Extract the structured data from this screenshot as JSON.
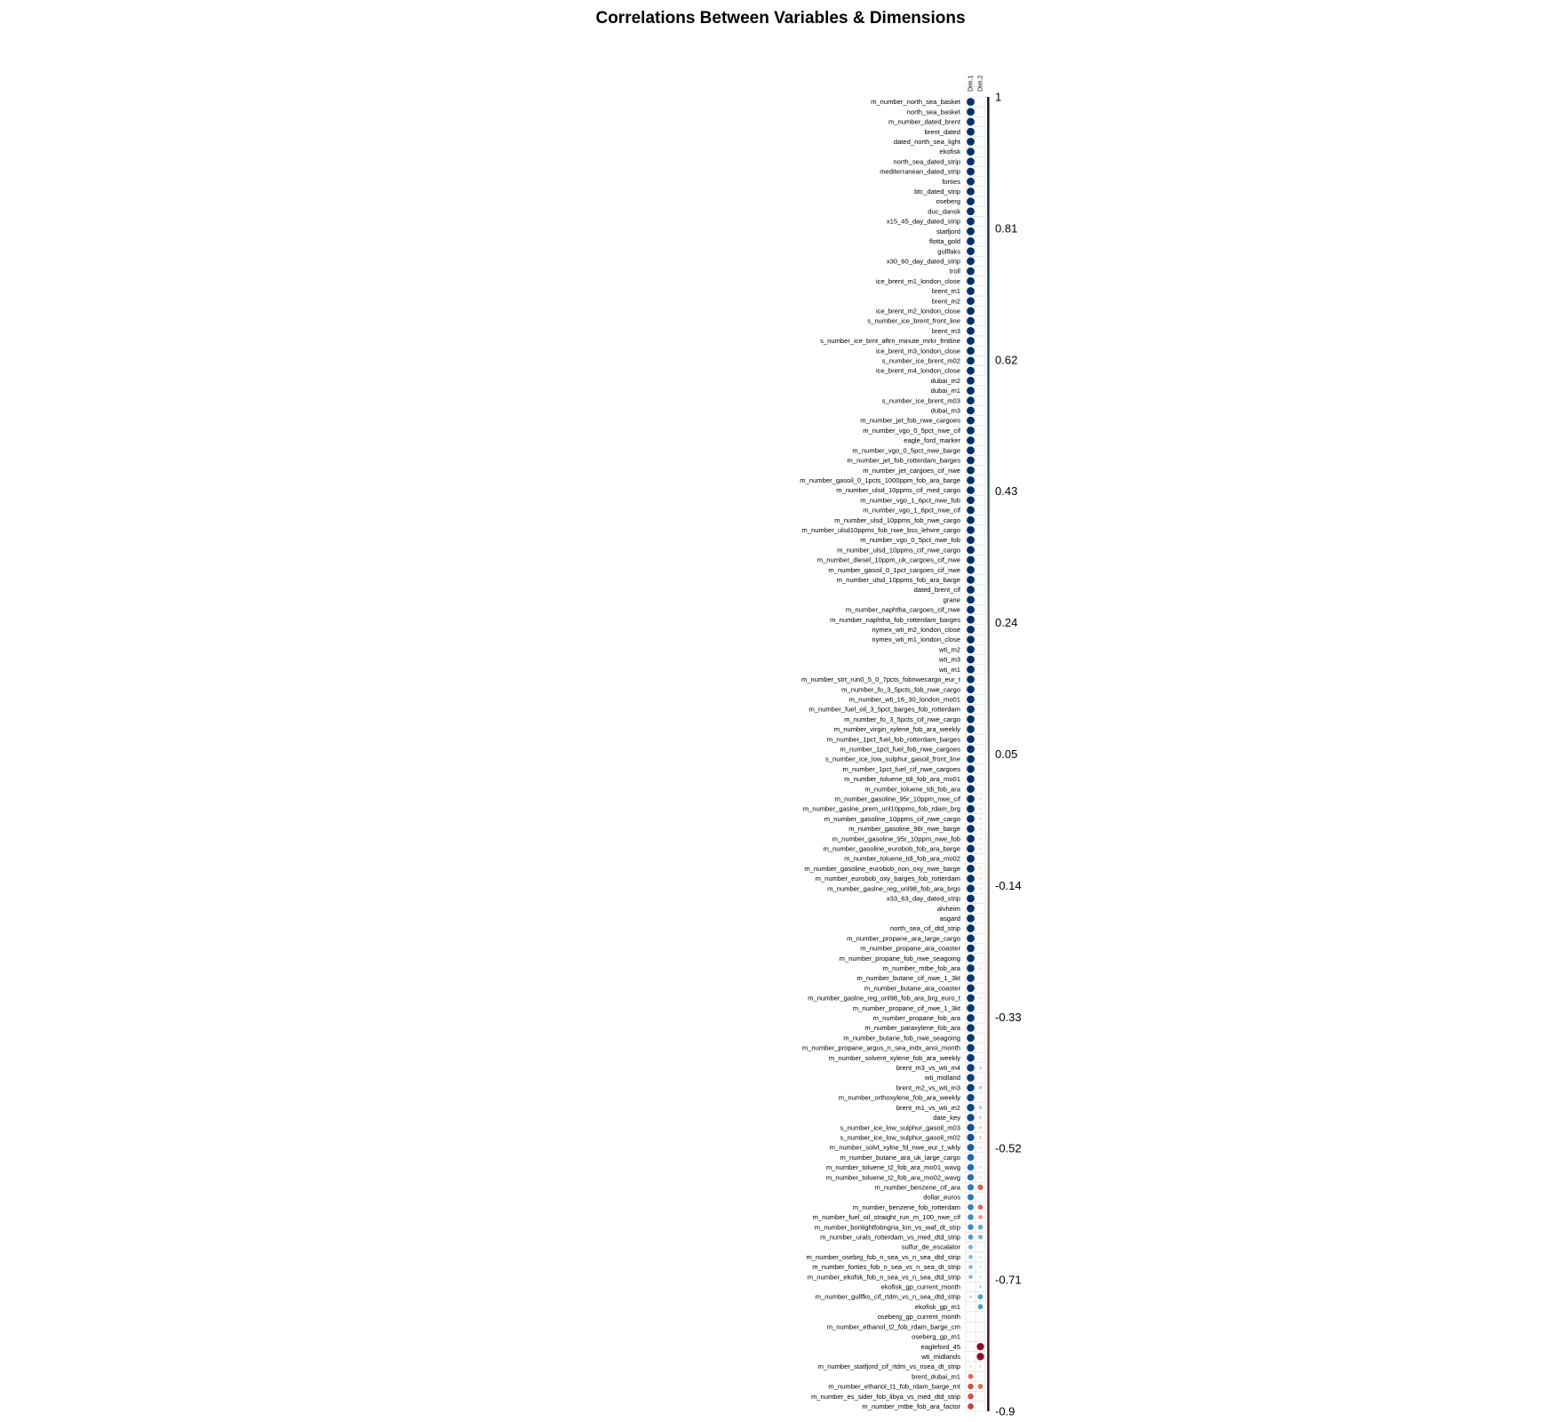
{
  "chart_data": {
    "type": "heatmap",
    "title": "Correlations Between Variables & Dimensions",
    "columns": [
      "Dim.1",
      "Dim.2"
    ],
    "colorbar": {
      "ticks": [
        "1",
        "0.81",
        "0.62",
        "0.43",
        "0.24",
        "0.05",
        "-0.14",
        "-0.33",
        "-0.52",
        "-0.71",
        "-0.9"
      ],
      "range": [
        -0.9,
        1
      ],
      "negative_color": "#67001f",
      "positive_color": "#053061"
    },
    "rows": [
      {
        "name": "m_number_north_sea_basket",
        "dim1": 0.99,
        "dim2": 0.0
      },
      {
        "name": "north_sea_basket",
        "dim1": 0.99,
        "dim2": 0.0
      },
      {
        "name": "m_number_dated_brent",
        "dim1": 0.99,
        "dim2": 0.0
      },
      {
        "name": "brent_dated",
        "dim1": 0.99,
        "dim2": 0.0
      },
      {
        "name": "dated_north_sea_light",
        "dim1": 0.99,
        "dim2": 0.0
      },
      {
        "name": "ekofisk",
        "dim1": 0.99,
        "dim2": 0.0
      },
      {
        "name": "north_sea_dated_strip",
        "dim1": 0.99,
        "dim2": 0.0
      },
      {
        "name": "mediterranean_dated_strip",
        "dim1": 0.99,
        "dim2": 0.0
      },
      {
        "name": "forties",
        "dim1": 0.99,
        "dim2": 0.0
      },
      {
        "name": "btc_dated_strip",
        "dim1": 0.99,
        "dim2": 0.0
      },
      {
        "name": "oseberg",
        "dim1": 0.99,
        "dim2": 0.0
      },
      {
        "name": "duc_dansk",
        "dim1": 0.99,
        "dim2": 0.0
      },
      {
        "name": "x15_45_day_dated_strip",
        "dim1": 0.99,
        "dim2": 0.0
      },
      {
        "name": "statfjord",
        "dim1": 0.99,
        "dim2": 0.0
      },
      {
        "name": "flotta_gold",
        "dim1": 0.99,
        "dim2": 0.0
      },
      {
        "name": "gullfaks",
        "dim1": 0.99,
        "dim2": 0.0
      },
      {
        "name": "x30_60_day_dated_strip",
        "dim1": 0.99,
        "dim2": 0.0
      },
      {
        "name": "troll",
        "dim1": 0.99,
        "dim2": 0.0
      },
      {
        "name": "ice_brent_m1_london_close",
        "dim1": 0.99,
        "dim2": 0.0
      },
      {
        "name": "brent_m1",
        "dim1": 0.99,
        "dim2": 0.0
      },
      {
        "name": "brent_m2",
        "dim1": 0.99,
        "dim2": 0.0
      },
      {
        "name": "ice_brent_m2_london_close",
        "dim1": 0.99,
        "dim2": 0.0
      },
      {
        "name": "s_number_ice_brent_front_line",
        "dim1": 0.99,
        "dim2": 0.0
      },
      {
        "name": "brent_m3",
        "dim1": 0.99,
        "dim2": 0.0
      },
      {
        "name": "s_number_ice_brnt_aftrn_minute_mrkr_frntline",
        "dim1": 0.99,
        "dim2": 0.0
      },
      {
        "name": "ice_brent_m3_london_close",
        "dim1": 0.99,
        "dim2": 0.0
      },
      {
        "name": "s_number_ice_brent_m02",
        "dim1": 0.99,
        "dim2": 0.0
      },
      {
        "name": "ice_brent_m4_london_close",
        "dim1": 0.99,
        "dim2": 0.0
      },
      {
        "name": "dubai_m2",
        "dim1": 0.99,
        "dim2": 0.0
      },
      {
        "name": "dubai_m1",
        "dim1": 0.99,
        "dim2": 0.0
      },
      {
        "name": "s_number_ice_brent_m03",
        "dim1": 0.99,
        "dim2": 0.0
      },
      {
        "name": "dubai_m3",
        "dim1": 0.99,
        "dim2": 0.0
      },
      {
        "name": "m_number_jet_fob_nwe_cargoes",
        "dim1": 0.99,
        "dim2": 0.0
      },
      {
        "name": "m_number_vgo_0_5pct_nwe_cif",
        "dim1": 0.99,
        "dim2": 0.0
      },
      {
        "name": "eagle_ford_marker",
        "dim1": 0.99,
        "dim2": 0.0
      },
      {
        "name": "m_number_vgo_0_5pct_nwe_barge",
        "dim1": 0.99,
        "dim2": 0.0
      },
      {
        "name": "m_number_jet_fob_rotterdam_barges",
        "dim1": 0.99,
        "dim2": 0.0
      },
      {
        "name": "m_number_jet_cargoes_cif_nwe",
        "dim1": 0.99,
        "dim2": 0.0
      },
      {
        "name": "m_number_gasoil_0_1pcts_1000ppm_fob_ara_barge",
        "dim1": 0.99,
        "dim2": 0.0
      },
      {
        "name": "m_number_ulsd_10ppms_cif_med_cargo",
        "dim1": 0.99,
        "dim2": 0.0
      },
      {
        "name": "m_number_vgo_1_6pct_nwe_fob",
        "dim1": 0.99,
        "dim2": 0.0
      },
      {
        "name": "m_number_vgo_1_6pct_nwe_cif",
        "dim1": 0.99,
        "dim2": 0.0
      },
      {
        "name": "m_number_ulsd_10ppms_fob_nwe_cargo",
        "dim1": 0.99,
        "dim2": 0.0
      },
      {
        "name": "m_number_ulsd10ppms_fob_nwe_bss_lehvre_cargo",
        "dim1": 0.99,
        "dim2": 0.0
      },
      {
        "name": "m_number_vgo_0_5pct_nwe_fob",
        "dim1": 0.99,
        "dim2": 0.0
      },
      {
        "name": "m_number_ulsd_10ppms_cif_nwe_cargo",
        "dim1": 0.99,
        "dim2": 0.0
      },
      {
        "name": "m_number_diesel_10ppm_uk_cargoes_cif_nwe",
        "dim1": 0.99,
        "dim2": 0.0
      },
      {
        "name": "m_number_gasoil_0_1pct_cargoes_cif_nwe",
        "dim1": 0.99,
        "dim2": 0.0
      },
      {
        "name": "m_number_ulsd_10ppms_fob_ara_barge",
        "dim1": 0.99,
        "dim2": 0.0
      },
      {
        "name": "dated_brent_cif",
        "dim1": 0.99,
        "dim2": 0.0
      },
      {
        "name": "grane",
        "dim1": 0.99,
        "dim2": 0.0
      },
      {
        "name": "m_number_naphtha_cargoes_cif_nwe",
        "dim1": 0.99,
        "dim2": 0.0
      },
      {
        "name": "m_number_naphtha_fob_rotterdam_barges",
        "dim1": 0.99,
        "dim2": 0.0
      },
      {
        "name": "nymex_wti_m2_london_close",
        "dim1": 0.99,
        "dim2": 0.0
      },
      {
        "name": "nymex_wti_m1_london_close",
        "dim1": 0.99,
        "dim2": 0.0
      },
      {
        "name": "wti_m2",
        "dim1": 0.99,
        "dim2": 0.0
      },
      {
        "name": "wti_m3",
        "dim1": 0.99,
        "dim2": 0.0
      },
      {
        "name": "wti_m1",
        "dim1": 0.99,
        "dim2": 0.0
      },
      {
        "name": "m_number_strt_run0_5_0_7pcts_fobnwecargo_eur_t",
        "dim1": 0.98,
        "dim2": 0.0
      },
      {
        "name": "m_number_fo_3_5pcts_fob_nwe_cargo",
        "dim1": 0.98,
        "dim2": 0.0
      },
      {
        "name": "m_number_wti_16_30_london_mo01",
        "dim1": 0.98,
        "dim2": 0.0
      },
      {
        "name": "m_number_fuel_oil_3_5pct_barges_fob_rotterdam",
        "dim1": 0.98,
        "dim2": 0.0
      },
      {
        "name": "m_number_fo_3_5pcts_cif_nwe_cargo",
        "dim1": 0.98,
        "dim2": 0.0
      },
      {
        "name": "m_number_virgin_xylene_fob_ara_weekly",
        "dim1": 0.98,
        "dim2": 0.0
      },
      {
        "name": "m_number_1pct_fuel_fob_rotterdam_barges",
        "dim1": 0.98,
        "dim2": 0.0
      },
      {
        "name": "m_number_1pct_fuel_fob_nwe_cargoes",
        "dim1": 0.98,
        "dim2": 0.0
      },
      {
        "name": "s_number_ice_low_sulphur_gasoil_front_line",
        "dim1": 0.98,
        "dim2": 0.0
      },
      {
        "name": "m_number_1pct_fuel_cif_nwe_cargoes",
        "dim1": 0.98,
        "dim2": 0.0
      },
      {
        "name": "m_number_toluene_tdi_fob_ara_mo01",
        "dim1": 0.98,
        "dim2": 0.0
      },
      {
        "name": "m_number_toluene_tdi_fob_ara",
        "dim1": 0.98,
        "dim2": 0.0
      },
      {
        "name": "m_number_gasoline_95r_10ppm_nwe_cif",
        "dim1": 0.98,
        "dim2": -0.1
      },
      {
        "name": "m_number_gaslne_prem_unl10ppms_fob_rdam_brg",
        "dim1": 0.98,
        "dim2": -0.1
      },
      {
        "name": "m_number_gasoline_10ppms_cif_nwe_cargo",
        "dim1": 0.98,
        "dim2": -0.1
      },
      {
        "name": "m_number_gasoline_98r_nwe_barge",
        "dim1": 0.98,
        "dim2": -0.1
      },
      {
        "name": "m_number_gasoline_95r_10ppm_nwe_fob",
        "dim1": 0.98,
        "dim2": -0.1
      },
      {
        "name": "m_number_gasoline_eurobob_fob_ara_barge",
        "dim1": 0.98,
        "dim2": -0.1
      },
      {
        "name": "m_number_toluene_tdi_fob_ara_mo02",
        "dim1": 0.98,
        "dim2": 0.0
      },
      {
        "name": "m_number_gasoline_eurobob_non_oxy_nwe_barge",
        "dim1": 0.98,
        "dim2": -0.1
      },
      {
        "name": "m_number_eurobob_oxy_barges_fob_rotterdam",
        "dim1": 0.98,
        "dim2": -0.1
      },
      {
        "name": "m_number_gaslne_reg_unl98_fob_ara_brgs",
        "dim1": 0.98,
        "dim2": -0.1
      },
      {
        "name": "x33_63_day_dated_strip",
        "dim1": 0.98,
        "dim2": 0.0
      },
      {
        "name": "alvheim",
        "dim1": 0.98,
        "dim2": 0.0
      },
      {
        "name": "asgard",
        "dim1": 0.98,
        "dim2": 0.0
      },
      {
        "name": "north_sea_cif_dtd_strip",
        "dim1": 0.98,
        "dim2": 0.0
      },
      {
        "name": "m_number_propane_ara_large_cargo",
        "dim1": 0.97,
        "dim2": 0.0
      },
      {
        "name": "m_number_propane_ara_coaster",
        "dim1": 0.97,
        "dim2": 0.0
      },
      {
        "name": "m_number_propane_fob_nwe_seagoing",
        "dim1": 0.97,
        "dim2": 0.0
      },
      {
        "name": "m_number_mtbe_fob_ara",
        "dim1": 0.97,
        "dim2": -0.1
      },
      {
        "name": "m_number_butane_cif_nwe_1_3kt",
        "dim1": 0.97,
        "dim2": 0.0
      },
      {
        "name": "m_number_butane_ara_coaster",
        "dim1": 0.97,
        "dim2": 0.0
      },
      {
        "name": "m_number_gaslne_reg_unl98_fob_ara_brg_euro_t",
        "dim1": 0.96,
        "dim2": -0.1
      },
      {
        "name": "m_number_propane_cif_nwe_1_3kt",
        "dim1": 0.96,
        "dim2": 0.05
      },
      {
        "name": "m_number_propane_fob_ara",
        "dim1": 0.96,
        "dim2": 0.0
      },
      {
        "name": "m_number_paraxylene_fob_ara",
        "dim1": 0.96,
        "dim2": 0.05
      },
      {
        "name": "m_number_butane_fob_nwe_seagoing",
        "dim1": 0.96,
        "dim2": 0.0
      },
      {
        "name": "m_number_propane_argus_n_sea_indx_ansi_month",
        "dim1": 0.95,
        "dim2": 0.05
      },
      {
        "name": "m_number_solvent_xylene_fob_ara_weekly",
        "dim1": 0.95,
        "dim2": 0.05
      },
      {
        "name": "brent_m3_vs_wti_m4",
        "dim1": 0.93,
        "dim2": 0.15
      },
      {
        "name": "wti_midland",
        "dim1": 0.93,
        "dim2": 0.05
      },
      {
        "name": "brent_m2_vs_wti_m3",
        "dim1": 0.92,
        "dim2": 0.2
      },
      {
        "name": "m_number_orthoxylene_fob_ara_weekly",
        "dim1": 0.9,
        "dim2": 0.05
      },
      {
        "name": "brent_m1_vs_wti_m2",
        "dim1": 0.9,
        "dim2": 0.2
      },
      {
        "name": "date_key",
        "dim1": 0.88,
        "dim2": 0.15
      },
      {
        "name": "s_number_ice_low_sulphur_gasoil_m03",
        "dim1": 0.85,
        "dim2": -0.15
      },
      {
        "name": "s_number_ice_low_sulphur_gasoil_m02",
        "dim1": 0.85,
        "dim2": -0.15
      },
      {
        "name": "m_number_solvt_xylne_fd_nwe_eur_t_wkly",
        "dim1": 0.8,
        "dim2": 0.1
      },
      {
        "name": "m_number_butane_ara_uk_large_cargo",
        "dim1": 0.75,
        "dim2": 0.05
      },
      {
        "name": "m_number_toluene_t2_fob_ara_mo01_wavg",
        "dim1": 0.72,
        "dim2": 0.1
      },
      {
        "name": "m_number_toluene_t2_fob_ara_mo02_wavg",
        "dim1": 0.7,
        "dim2": 0.1
      },
      {
        "name": "m_number_benzene_cif_ara",
        "dim1": 0.65,
        "dim2": -0.5
      },
      {
        "name": "dollar_euros",
        "dim1": 0.65,
        "dim2": 0.0
      },
      {
        "name": "m_number_benzene_fob_rotterdam",
        "dim1": 0.6,
        "dim2": -0.45
      },
      {
        "name": "m_number_fuel_oil_straight_run_m_100_nwe_cif",
        "dim1": 0.55,
        "dim2": -0.3
      },
      {
        "name": "m_number_bonlightfobngria_lon_vs_waf_dt_strp",
        "dim1": 0.55,
        "dim2": 0.4
      },
      {
        "name": "m_number_urals_rotterdam_vs_med_dtd_strip",
        "dim1": 0.45,
        "dim2": 0.35
      },
      {
        "name": "sulfur_de_escalator",
        "dim1": 0.35,
        "dim2": 0.0
      },
      {
        "name": "m_number_osebrg_fob_n_sea_vs_n_sea_dtd_strip",
        "dim1": 0.3,
        "dim2": 0.1
      },
      {
        "name": "m_number_forties_fob_n_sea_vs_n_sea_dt_strip",
        "dim1": 0.3,
        "dim2": 0.1
      },
      {
        "name": "m_number_ekofsk_fob_n_sea_vs_n_sea_dtd_strip",
        "dim1": 0.3,
        "dim2": 0.1
      },
      {
        "name": "ekofisk_gp_current_month",
        "dim1": 0.0,
        "dim2": 0.15
      },
      {
        "name": "m_number_gullfks_cif_rtdm_vs_n_sea_dtd_strip",
        "dim1": 0.15,
        "dim2": 0.45
      },
      {
        "name": "ekofisk_gp_m1",
        "dim1": 0.0,
        "dim2": 0.45
      },
      {
        "name": "oseberg_gp_current_month",
        "dim1": 0.0,
        "dim2": 0.0
      },
      {
        "name": "m_number_ethanol_t2_fob_rdam_barge_cm",
        "dim1": 0.0,
        "dim2": 0.0
      },
      {
        "name": "oseberg_gp_m1",
        "dim1": 0.0,
        "dim2": 0.0
      },
      {
        "name": "eagleford_45",
        "dim1": 0.0,
        "dim2": -0.88
      },
      {
        "name": "wti_midlands",
        "dim1": 0.0,
        "dim2": -0.88
      },
      {
        "name": "m_number_statfjord_cif_rtdm_vs_nsea_dt_strip",
        "dim1": -0.1,
        "dim2": 0.1
      },
      {
        "name": "brent_dubai_m1",
        "dim1": -0.45,
        "dim2": 0.0
      },
      {
        "name": "m_number_ethanol_t1_fob_rdam_barge_mt",
        "dim1": -0.55,
        "dim2": -0.45
      },
      {
        "name": "m_number_es_sider_fob_libya_vs_med_dtd_strip",
        "dim1": -0.55,
        "dim2": 0.0
      },
      {
        "name": "m_number_mtbe_fob_ara_factor",
        "dim1": -0.6,
        "dim2": 0.0
      }
    ]
  }
}
